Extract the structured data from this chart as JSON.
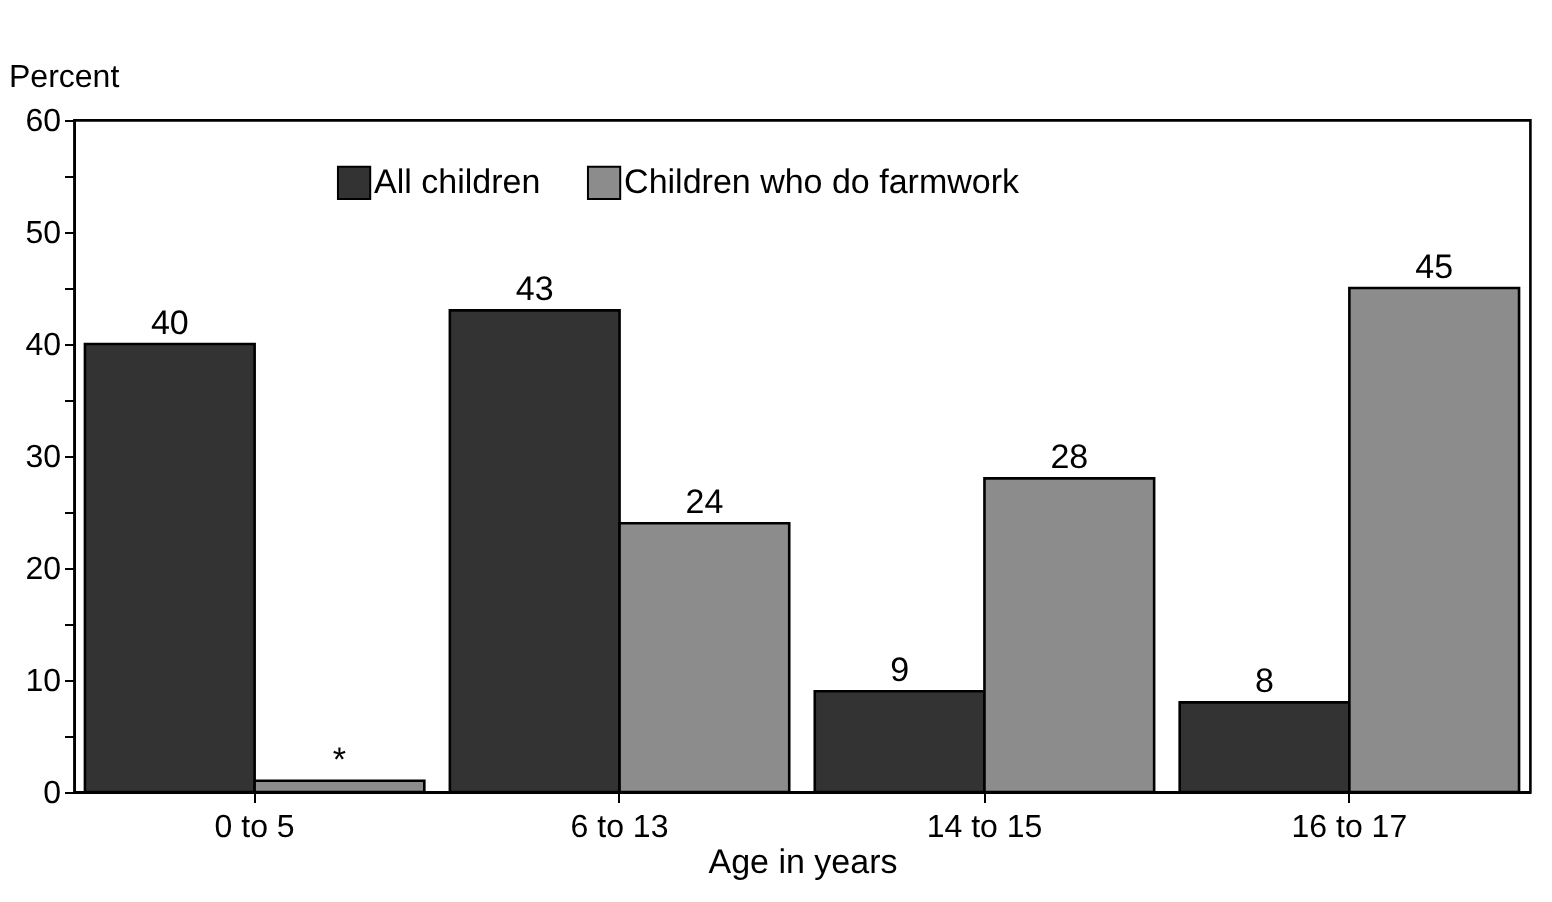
{
  "chart_data": {
    "type": "bar",
    "xlabel": "Age in years",
    "ylabel": "Percent",
    "categories": [
      "0 to 5",
      "6 to 13",
      "14 to 15",
      "16 to 17"
    ],
    "series": [
      {
        "name": "All children",
        "color": "#333333",
        "values": [
          40,
          43,
          9,
          8
        ],
        "value_labels": [
          "40",
          "43",
          "9",
          "8"
        ]
      },
      {
        "name": "Children who do farmwork",
        "color": "#8c8c8c",
        "values": [
          1,
          24,
          28,
          45
        ],
        "value_labels": [
          "*",
          "24",
          "28",
          "45"
        ]
      }
    ],
    "ylim": [
      0,
      60
    ],
    "yticks": [
      0,
      {
        "value": 5,
        "label": null
      },
      10,
      {
        "value": 15,
        "label": null
      },
      20,
      {
        "value": 25,
        "label": null
      },
      30,
      {
        "value": 35,
        "label": null
      },
      40,
      {
        "value": 45,
        "label": null
      },
      50,
      {
        "value": 55,
        "label": null
      },
      60
    ],
    "grid": false,
    "legend": "top"
  }
}
